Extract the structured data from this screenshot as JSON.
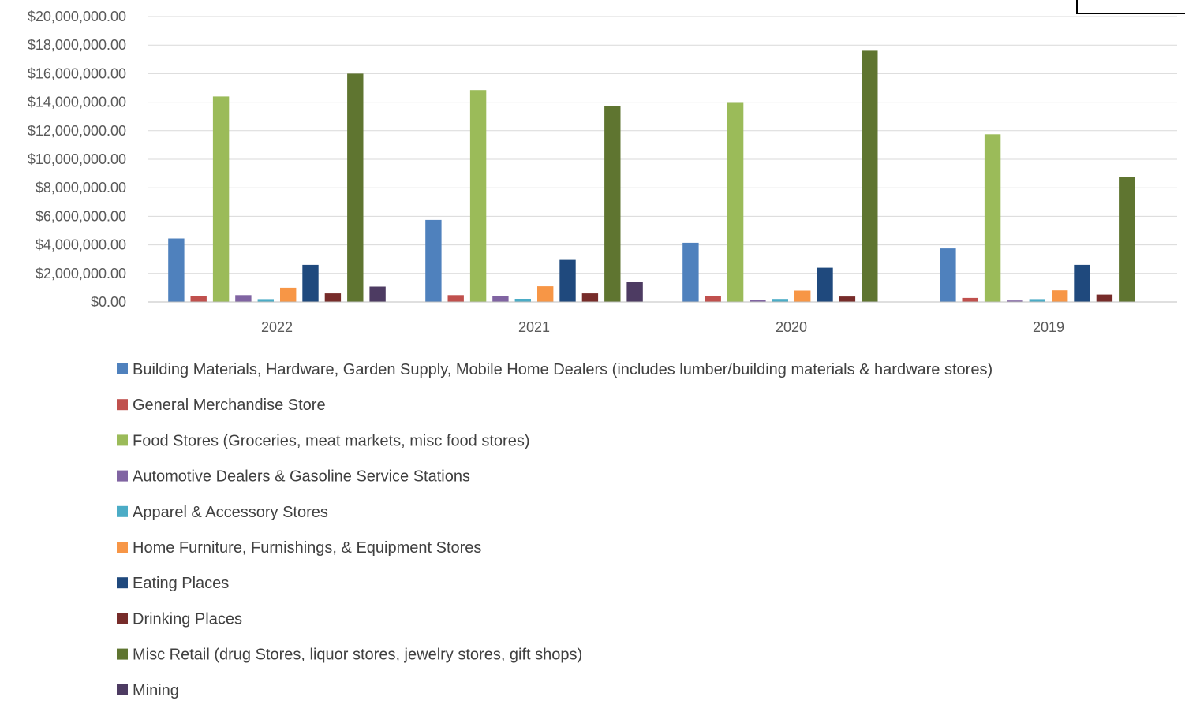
{
  "chart_data": {
    "type": "bar",
    "title": "",
    "xlabel": "",
    "ylabel": "",
    "categories": [
      "2022",
      "2021",
      "2020",
      "2019"
    ],
    "ylim": [
      0,
      20000000
    ],
    "ytick_step": 2000000,
    "ytick_labels": [
      "$0.00",
      "$2,000,000.00",
      "$4,000,000.00",
      "$6,000,000.00",
      "$8,000,000.00",
      "$10,000,000.00",
      "$12,000,000.00",
      "$14,000,000.00",
      "$16,000,000.00",
      "$18,000,000.00",
      "$20,000,000.00"
    ],
    "grid": true,
    "legend_position": "bottom",
    "series": [
      {
        "name": "Building Materials, Hardware, Garden Supply, Mobile Home Dealers (includes lumber/building materials & hardware stores)",
        "color": "#4F81BD",
        "values": [
          4450000,
          5750000,
          4150000,
          3750000
        ]
      },
      {
        "name": "General Merchandise Store",
        "color": "#C0504D",
        "values": [
          420000,
          480000,
          400000,
          280000
        ]
      },
      {
        "name": "Food Stores (Groceries, meat markets, misc food stores)",
        "color": "#9BBB59",
        "values": [
          14400000,
          14850000,
          13950000,
          11750000
        ]
      },
      {
        "name": "Automotive Dealers & Gasoline Service Stations",
        "color": "#8064A2",
        "values": [
          480000,
          400000,
          130000,
          100000
        ]
      },
      {
        "name": "Apparel & Accessory Stores",
        "color": "#4BACC6",
        "values": [
          200000,
          220000,
          210000,
          200000
        ]
      },
      {
        "name": "Home Furniture, Furnishings, & Equipment Stores",
        "color": "#F79646",
        "values": [
          1000000,
          1100000,
          800000,
          820000
        ]
      },
      {
        "name": "Eating Places",
        "color": "#1F497D",
        "values": [
          2600000,
          2950000,
          2400000,
          2600000
        ]
      },
      {
        "name": "Drinking Places",
        "color": "#772C2A",
        "values": [
          600000,
          600000,
          380000,
          520000
        ]
      },
      {
        "name": "Misc Retail (drug Stores, liquor stores, jewelry stores, gift shops)",
        "color": "#5F7530",
        "values": [
          16000000,
          13750000,
          17600000,
          8750000
        ]
      },
      {
        "name": "Mining",
        "color": "#4D3B62",
        "values": [
          1080000,
          1380000,
          0,
          0
        ]
      }
    ]
  }
}
